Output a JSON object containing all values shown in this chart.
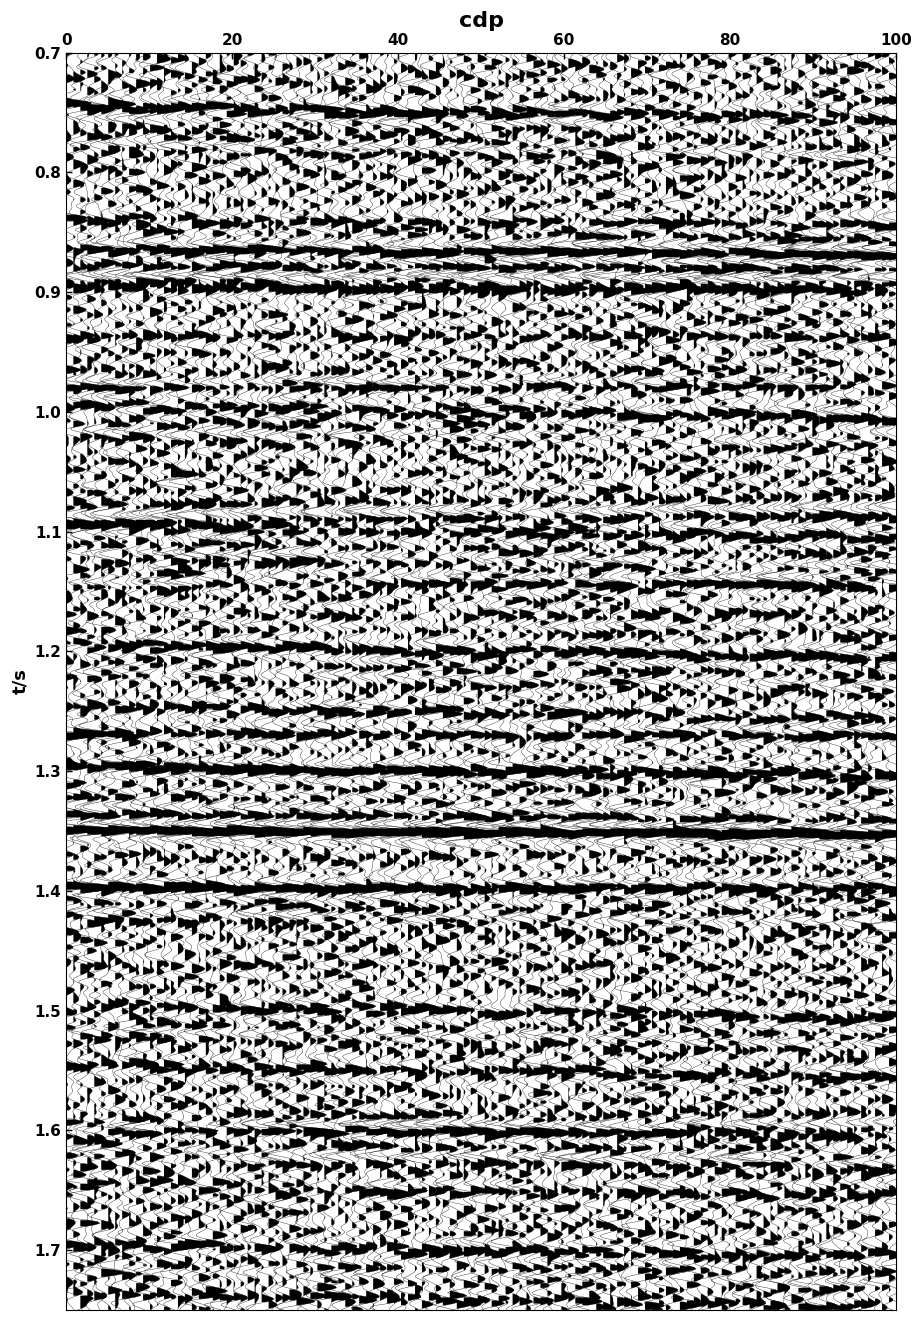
{
  "title": "cdp",
  "xlabel": "cdp",
  "ylabel": "t/s",
  "xlim": [
    0,
    100
  ],
  "ylim": [
    1.75,
    0.7
  ],
  "xticks": [
    0,
    20,
    40,
    60,
    80,
    100
  ],
  "yticks": [
    0.7,
    0.8,
    0.9,
    1.0,
    1.1,
    1.2,
    1.3,
    1.4,
    1.5,
    1.6,
    1.7
  ],
  "n_traces": 120,
  "n_samples": 800,
  "t_start": 0.7,
  "t_end": 1.75,
  "cdp_start": 0,
  "cdp_end": 100,
  "amplitude_scale": 2.2,
  "dominant_freq": 60,
  "noise_level": 0.6,
  "n_reflectors": 40,
  "background_color": "#ffffff",
  "trace_color": "#000000",
  "fill_color": "#000000",
  "seed": 42,
  "title_fontsize": 16,
  "label_fontsize": 13,
  "tick_fontsize": 11,
  "linewidth": 0.25
}
